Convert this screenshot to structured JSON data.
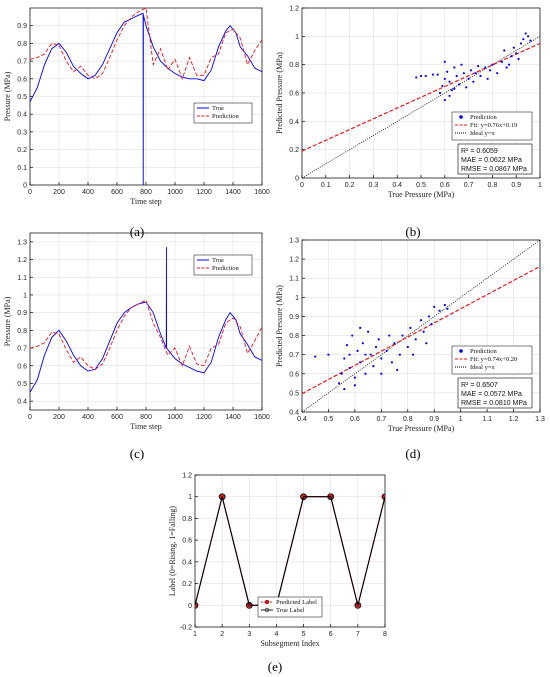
{
  "panel_captions": [
    "(a)",
    "(b)",
    "(c)",
    "(d)",
    "(e)"
  ],
  "chart_data": [
    {
      "id": "a",
      "type": "line",
      "xlabel": "Time step",
      "ylabel": "Pressure (MPa)",
      "xlim": [
        0,
        1600
      ],
      "ylim": [
        0,
        1
      ],
      "xticks": [
        0,
        200,
        400,
        600,
        800,
        1000,
        1200,
        1400,
        1600
      ],
      "yticks": [
        0,
        0.1,
        0.2,
        0.3,
        0.4,
        0.5,
        0.6,
        0.7,
        0.8,
        0.9
      ],
      "grid": true,
      "legend_position": "inside-lower-right",
      "series": [
        {
          "name": "True",
          "color": "#0000ff",
          "x": [
            0,
            50,
            100,
            150,
            200,
            250,
            300,
            350,
            400,
            450,
            500,
            550,
            600,
            650,
            700,
            750,
            780,
            781,
            782,
            800,
            850,
            900,
            950,
            1000,
            1050,
            1100,
            1150,
            1200,
            1250,
            1300,
            1350,
            1380,
            1420,
            1450,
            1500,
            1550,
            1600
          ],
          "y": [
            0.47,
            0.55,
            0.68,
            0.77,
            0.8,
            0.75,
            0.67,
            0.63,
            0.6,
            0.62,
            0.68,
            0.77,
            0.86,
            0.92,
            0.94,
            0.96,
            0.97,
            0.0,
            0.96,
            0.9,
            0.78,
            0.7,
            0.66,
            0.63,
            0.61,
            0.6,
            0.6,
            0.59,
            0.65,
            0.78,
            0.87,
            0.9,
            0.86,
            0.78,
            0.73,
            0.66,
            0.64
          ]
        },
        {
          "name": "Prediction",
          "color": "#e8171e",
          "x": [
            0,
            50,
            100,
            150,
            200,
            250,
            300,
            350,
            400,
            450,
            500,
            550,
            600,
            650,
            700,
            750,
            800,
            850,
            900,
            950,
            1000,
            1050,
            1100,
            1150,
            1200,
            1250,
            1300,
            1350,
            1400,
            1450,
            1500,
            1550,
            1600
          ],
          "y": [
            0.71,
            0.72,
            0.74,
            0.8,
            0.79,
            0.7,
            0.64,
            0.67,
            0.62,
            0.6,
            0.63,
            0.72,
            0.82,
            0.9,
            0.95,
            0.98,
            1.0,
            0.68,
            0.77,
            0.65,
            0.71,
            0.6,
            0.72,
            0.62,
            0.62,
            0.72,
            0.74,
            0.86,
            0.88,
            0.83,
            0.68,
            0.76,
            0.82
          ]
        }
      ]
    },
    {
      "id": "b",
      "type": "scatter",
      "xlabel": "True Pressure (MPa)",
      "ylabel": "Predicted Pressure (MPa)",
      "xlim": [
        0,
        1
      ],
      "ylim": [
        0,
        1.2
      ],
      "xticks": [
        0,
        0.1,
        0.2,
        0.3,
        0.4,
        0.5,
        0.6,
        0.7,
        0.8,
        0.9,
        1
      ],
      "yticks": [
        0,
        0.2,
        0.4,
        0.6,
        0.8,
        1,
        1.2
      ],
      "grid": true,
      "legend_position": "inside-lower-right",
      "series": [
        {
          "name": "Prediction",
          "color": "#0000ff",
          "marker": "dot"
        },
        {
          "name": "Fit: y=0.76x+0.19",
          "color": "#e8171e",
          "slope": 0.76,
          "intercept": 0.19,
          "style": "dashed"
        },
        {
          "name": "Ideal y=x",
          "color": "#000000",
          "slope": 1,
          "intercept": 0,
          "style": "dotted"
        }
      ],
      "points": [
        [
          0.48,
          0.71
        ],
        [
          0.5,
          0.72
        ],
        [
          0.52,
          0.72
        ],
        [
          0.55,
          0.73
        ],
        [
          0.57,
          0.73
        ],
        [
          0.58,
          0.6
        ],
        [
          0.59,
          0.65
        ],
        [
          0.6,
          0.7
        ],
        [
          0.61,
          0.75
        ],
        [
          0.62,
          0.68
        ],
        [
          0.63,
          0.62
        ],
        [
          0.64,
          0.78
        ],
        [
          0.65,
          0.72
        ],
        [
          0.66,
          0.66
        ],
        [
          0.67,
          0.8
        ],
        [
          0.68,
          0.74
        ],
        [
          0.7,
          0.7
        ],
        [
          0.71,
          0.76
        ],
        [
          0.72,
          0.68
        ],
        [
          0.73,
          0.74
        ],
        [
          0.75,
          0.72
        ],
        [
          0.77,
          0.78
        ],
        [
          0.78,
          0.7
        ],
        [
          0.8,
          0.8
        ],
        [
          0.82,
          0.74
        ],
        [
          0.84,
          0.82
        ],
        [
          0.86,
          0.78
        ],
        [
          0.88,
          0.86
        ],
        [
          0.9,
          0.88
        ],
        [
          0.91,
          0.84
        ],
        [
          0.92,
          0.95
        ],
        [
          0.93,
          0.98
        ],
        [
          0.94,
          1.02
        ],
        [
          0.95,
          1.0
        ],
        [
          0.96,
          0.97
        ],
        [
          0.62,
          0.58
        ],
        [
          0.64,
          0.63
        ],
        [
          0.69,
          0.64
        ],
        [
          0.74,
          0.79
        ],
        [
          0.79,
          0.76
        ],
        [
          0.85,
          0.9
        ],
        [
          0.87,
          0.8
        ],
        [
          0.89,
          0.92
        ],
        [
          0.6,
          0.55
        ],
        [
          0.6,
          0.82
        ]
      ],
      "stats": [
        "R² = 0.6059",
        "MAE = 0.0622 MPa",
        "RMSE = 0.0867 MPa"
      ]
    },
    {
      "id": "c",
      "type": "line",
      "xlabel": "Time step",
      "ylabel": "Pressure (MPa)",
      "xlim": [
        0,
        1600
      ],
      "ylim": [
        0.35,
        1.35
      ],
      "xticks": [
        0,
        200,
        400,
        600,
        800,
        1000,
        1200,
        1400,
        1600
      ],
      "yticks": [
        0.4,
        0.5,
        0.6,
        0.7,
        0.8,
        0.9,
        1,
        1.1,
        1.2,
        1.3
      ],
      "grid": true,
      "legend_position": "inside-upper-right",
      "series": [
        {
          "name": "True",
          "color": "#0000ff",
          "x": [
            0,
            50,
            100,
            150,
            200,
            250,
            300,
            350,
            400,
            450,
            500,
            550,
            600,
            650,
            700,
            750,
            800,
            850,
            900,
            940,
            941,
            942,
            1000,
            1050,
            1100,
            1150,
            1200,
            1250,
            1300,
            1350,
            1380,
            1420,
            1450,
            1500,
            1550,
            1600
          ],
          "y": [
            0.45,
            0.52,
            0.66,
            0.76,
            0.8,
            0.74,
            0.66,
            0.6,
            0.57,
            0.58,
            0.64,
            0.74,
            0.84,
            0.9,
            0.93,
            0.95,
            0.96,
            0.9,
            0.78,
            0.7,
            1.27,
            0.7,
            0.64,
            0.61,
            0.59,
            0.57,
            0.56,
            0.62,
            0.76,
            0.86,
            0.9,
            0.86,
            0.78,
            0.72,
            0.65,
            0.63
          ]
        },
        {
          "name": "Prediction",
          "color": "#e8171e",
          "x": [
            0,
            50,
            100,
            150,
            200,
            250,
            300,
            350,
            400,
            450,
            500,
            550,
            600,
            650,
            700,
            750,
            800,
            850,
            900,
            950,
            1000,
            1050,
            1100,
            1150,
            1200,
            1250,
            1300,
            1350,
            1400,
            1450,
            1500,
            1550,
            1600
          ],
          "y": [
            0.7,
            0.71,
            0.73,
            0.79,
            0.78,
            0.69,
            0.62,
            0.65,
            0.6,
            0.58,
            0.61,
            0.7,
            0.8,
            0.88,
            0.93,
            0.95,
            0.97,
            0.84,
            0.76,
            0.66,
            0.7,
            0.6,
            0.71,
            0.61,
            0.6,
            0.7,
            0.72,
            0.84,
            0.87,
            0.82,
            0.67,
            0.74,
            0.82
          ]
        }
      ]
    },
    {
      "id": "d",
      "type": "scatter",
      "xlabel": "True Pressure (MPa)",
      "ylabel": "Predicted Pressure (MPa)",
      "xlim": [
        0.4,
        1.3
      ],
      "ylim": [
        0.4,
        1.3
      ],
      "xticks": [
        0.4,
        0.5,
        0.6,
        0.7,
        0.8,
        0.9,
        1,
        1.1,
        1.2,
        1.3
      ],
      "yticks": [
        0.4,
        0.5,
        0.6,
        0.7,
        0.8,
        0.9,
        1,
        1.1,
        1.2,
        1.3
      ],
      "grid": true,
      "legend_position": "inside-lower-right",
      "series": [
        {
          "name": "Prediction",
          "color": "#0000ff",
          "marker": "dot"
        },
        {
          "name": "Fit: y=0.74x+0.20",
          "color": "#e8171e",
          "slope": 0.74,
          "intercept": 0.2,
          "style": "dashed"
        },
        {
          "name": "Ideal y=x",
          "color": "#000000",
          "slope": 1,
          "intercept": 0,
          "style": "dotted"
        }
      ],
      "points": [
        [
          0.45,
          0.69
        ],
        [
          0.5,
          0.7
        ],
        [
          0.54,
          0.55
        ],
        [
          0.55,
          0.6
        ],
        [
          0.56,
          0.68
        ],
        [
          0.57,
          0.75
        ],
        [
          0.58,
          0.63
        ],
        [
          0.59,
          0.8
        ],
        [
          0.6,
          0.58
        ],
        [
          0.61,
          0.72
        ],
        [
          0.62,
          0.66
        ],
        [
          0.63,
          0.76
        ],
        [
          0.64,
          0.6
        ],
        [
          0.65,
          0.82
        ],
        [
          0.66,
          0.7
        ],
        [
          0.67,
          0.64
        ],
        [
          0.68,
          0.74
        ],
        [
          0.69,
          0.78
        ],
        [
          0.7,
          0.68
        ],
        [
          0.72,
          0.72
        ],
        [
          0.74,
          0.66
        ],
        [
          0.75,
          0.76
        ],
        [
          0.77,
          0.7
        ],
        [
          0.78,
          0.8
        ],
        [
          0.8,
          0.74
        ],
        [
          0.81,
          0.84
        ],
        [
          0.83,
          0.78
        ],
        [
          0.85,
          0.88
        ],
        [
          0.86,
          0.82
        ],
        [
          0.88,
          0.9
        ],
        [
          0.89,
          0.86
        ],
        [
          0.9,
          0.95
        ],
        [
          0.92,
          0.93
        ],
        [
          0.94,
          0.96
        ],
        [
          0.95,
          0.94
        ],
        [
          0.56,
          0.52
        ],
        [
          0.6,
          0.54
        ],
        [
          0.64,
          0.7
        ],
        [
          0.7,
          0.6
        ],
        [
          0.73,
          0.8
        ],
        [
          0.76,
          0.62
        ],
        [
          0.82,
          0.7
        ],
        [
          0.87,
          0.76
        ],
        [
          0.58,
          0.7
        ],
        [
          0.62,
          0.84
        ]
      ],
      "stats": [
        "R² = 0.6507",
        "MAE = 0.0572 MPa",
        "RMSE = 0.0810 MPa"
      ]
    },
    {
      "id": "e",
      "type": "line",
      "xlabel": "Subsegment Index",
      "ylabel": "Label (0=Rising, 1=Falling)",
      "xlim": [
        1,
        8
      ],
      "ylim": [
        -0.2,
        1.2
      ],
      "xticks": [
        1,
        2,
        3,
        4,
        5,
        6,
        7,
        8
      ],
      "yticks": [
        -0.2,
        0,
        0.2,
        0.4,
        0.6,
        0.8,
        1,
        1.2
      ],
      "grid": true,
      "legend_position": "inside-lower-center",
      "series": [
        {
          "name": "Predicted Label",
          "color": "#e8171e",
          "x": [
            1,
            2,
            3,
            4,
            5,
            6,
            7,
            8
          ],
          "y": [
            0,
            1,
            0,
            0,
            1,
            1,
            0,
            1
          ]
        },
        {
          "name": "True Label",
          "color": "#000000",
          "x": [
            1,
            2,
            3,
            4,
            5,
            6,
            7,
            8
          ],
          "y": [
            0,
            1,
            0,
            0,
            1,
            1,
            0,
            1
          ]
        }
      ]
    }
  ]
}
